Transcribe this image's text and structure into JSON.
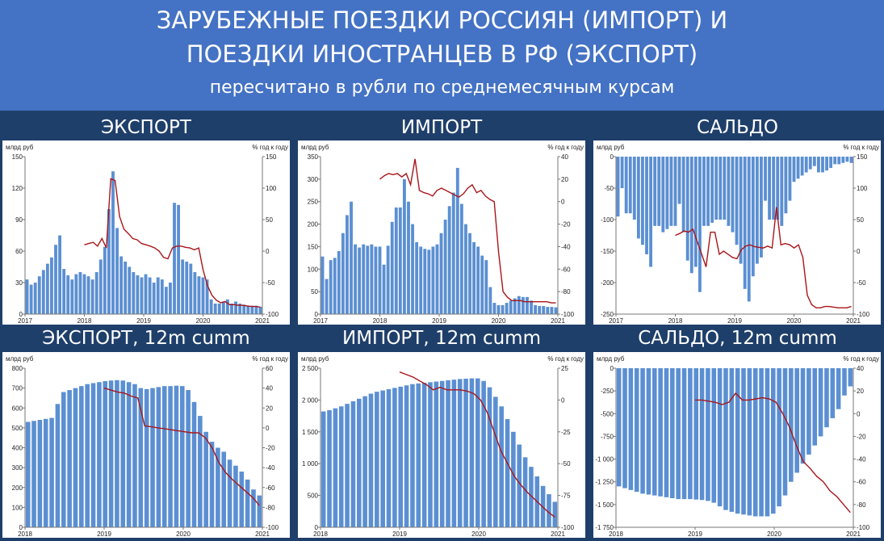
{
  "title": {
    "line1": "ЗАРУБЕЖНЫЕ ПОЕЗДКИ РОССИЯН (ИМПОРТ) И",
    "line2": "ПОЕЗДКИ ИНОСТРАНЦЕВ В РФ (ЭКСПОРТ)",
    "subtitle": "пересчитано в рубли по среднемесячным курсам"
  },
  "colors": {
    "banner": "#4472c4",
    "background": "#1f3f6b",
    "bars": "#5b8fd2",
    "line": "#a8161a"
  },
  "chart_data": [
    {
      "id": "export",
      "type": "bar+line",
      "title": "ЭКСПОРТ",
      "ylabel_left": "млрд руб",
      "ylabel_right": "% год к году",
      "x_start": 2017.0,
      "x_end": 2021.0,
      "bar_start": 2017.0,
      "line_start": 2018.0,
      "ylim_left": [
        0,
        150
      ],
      "ylim_right": [
        -100,
        150
      ],
      "yticks_left": [
        0,
        30,
        60,
        90,
        120,
        150
      ],
      "yticks_right": [
        -100,
        -50,
        0,
        50,
        100,
        150
      ],
      "xticks": [
        "2017",
        "2018",
        "2019",
        "2020",
        "2021"
      ],
      "series": [
        {
          "name": "млрд руб",
          "type": "bar",
          "values": [
            33,
            28,
            30,
            36,
            42,
            48,
            54,
            66,
            75,
            43,
            37,
            33,
            38,
            40,
            38,
            36,
            33,
            40,
            52,
            64,
            100,
            136,
            82,
            55,
            50,
            45,
            40,
            37,
            35,
            38,
            35,
            30,
            35,
            33,
            26,
            30,
            106,
            104,
            52,
            50,
            48,
            40,
            36,
            35,
            33,
            14,
            10,
            10,
            12,
            14,
            10,
            12,
            10,
            9,
            8,
            8,
            8,
            7
          ]
        },
        {
          "name": "% год к году",
          "type": "line",
          "values": [
            10,
            12,
            14,
            8,
            20,
            5,
            115,
            112,
            55,
            35,
            28,
            20,
            18,
            12,
            10,
            8,
            5,
            0,
            -10,
            -12,
            5,
            8,
            8,
            6,
            5,
            2,
            5,
            -30,
            -55,
            -70,
            -78,
            -82,
            -80,
            -85,
            -85,
            -86,
            -86,
            -87,
            -88,
            -88,
            -89
          ]
        }
      ]
    },
    {
      "id": "import",
      "type": "bar+line",
      "title": "ИМПОРТ",
      "ylabel_left": "млрд руб",
      "ylabel_right": "% год к году",
      "x_start": 2017.0,
      "x_end": 2021.0,
      "bar_start": 2017.0,
      "line_start": 2018.0,
      "ylim_left": [
        0,
        350
      ],
      "ylim_right": [
        -100,
        40
      ],
      "yticks_left": [
        0,
        50,
        100,
        150,
        200,
        250,
        300,
        350
      ],
      "yticks_right": [
        -100,
        -80,
        -60,
        -40,
        -20,
        0,
        20,
        40
      ],
      "xticks": [
        "2017",
        "2018",
        "2019",
        "2020",
        "2021"
      ],
      "series": [
        {
          "name": "млрд руб",
          "type": "bar",
          "values": [
            128,
            78,
            120,
            125,
            140,
            180,
            220,
            250,
            155,
            148,
            155,
            152,
            155,
            150,
            150,
            110,
            152,
            205,
            237,
            237,
            300,
            250,
            200,
            160,
            150,
            145,
            143,
            150,
            155,
            180,
            210,
            240,
            270,
            325,
            245,
            200,
            180,
            160,
            150,
            130,
            120,
            60,
            25,
            20,
            20,
            25,
            30,
            35,
            40,
            38,
            38,
            30,
            20,
            18,
            18,
            16,
            16,
            15
          ]
        },
        {
          "name": "% год к году",
          "type": "line",
          "values": [
            20,
            23,
            25,
            24,
            25,
            22,
            25,
            15,
            38,
            10,
            8,
            7,
            5,
            10,
            12,
            10,
            8,
            6,
            4,
            7,
            12,
            15,
            8,
            10,
            5,
            2,
            0,
            -45,
            -80,
            -85,
            -88,
            -88,
            -88,
            -89,
            -89,
            -89,
            -89,
            -89,
            -89,
            -90,
            -90
          ]
        }
      ]
    },
    {
      "id": "balance",
      "type": "bar+line",
      "title": "САЛЬДО",
      "ylabel_left": "млрд руб",
      "ylabel_right": "% год к году",
      "x_start": 2017.0,
      "x_end": 2021.0,
      "bar_start": 2017.0,
      "line_start": 2018.0,
      "ylim_left": [
        -250,
        0
      ],
      "ylim_right": [
        -100,
        150
      ],
      "yticks_left": [
        -250,
        -200,
        -150,
        -100,
        -50,
        0
      ],
      "yticks_right": [
        -100,
        -50,
        0,
        50,
        100,
        150
      ],
      "xticks": [
        "2017",
        "2018",
        "2019",
        "2020",
        "2021"
      ],
      "series": [
        {
          "name": "млрд руб",
          "type": "bar",
          "values": [
            -95,
            -50,
            -90,
            -90,
            -100,
            -130,
            -140,
            -155,
            -175,
            -110,
            -110,
            -120,
            -115,
            -110,
            -110,
            -75,
            -120,
            -165,
            -185,
            -175,
            -215,
            -110,
            -110,
            -105,
            -100,
            -100,
            -100,
            -110,
            -120,
            -140,
            -170,
            -210,
            -230,
            -190,
            -170,
            -160,
            -70,
            -100,
            -100,
            -100,
            -110,
            -90,
            -70,
            -40,
            -35,
            -30,
            -25,
            -20,
            -15,
            -25,
            -25,
            -22,
            -18,
            -12,
            -12,
            -10,
            -8,
            -10
          ]
        },
        {
          "name": "% год к году",
          "type": "line",
          "values": [
            25,
            28,
            32,
            30,
            35,
            15,
            -5,
            -25,
            30,
            30,
            -5,
            0,
            -5,
            -10,
            -12,
            2,
            8,
            10,
            7,
            6,
            5,
            8,
            5,
            70,
            10,
            12,
            10,
            5,
            10,
            -10,
            -70,
            -85,
            -90,
            -90,
            -88,
            -88,
            -89,
            -90,
            -90,
            -90,
            -88
          ]
        }
      ]
    },
    {
      "id": "export_12m",
      "type": "bar+line",
      "title": "ЭКСПОРТ, 12m cumm",
      "ylabel_left": "млрд руб",
      "ylabel_right": "% год к году",
      "x_start": 2018.0,
      "x_end": 2021.0,
      "bar_start": 2018.0,
      "line_start": 2019.0,
      "ylim_left": [
        0,
        800
      ],
      "ylim_right": [
        -100,
        60
      ],
      "yticks_left": [
        0,
        100,
        200,
        300,
        400,
        500,
        600,
        700,
        800
      ],
      "yticks_right": [
        -100,
        -80,
        -60,
        -40,
        -20,
        0,
        20,
        40,
        60
      ],
      "xticks": [
        "2018",
        "2019",
        "2020",
        "2021"
      ],
      "series": [
        {
          "name": "млрд руб",
          "type": "bar",
          "values": [
            530,
            535,
            540,
            545,
            550,
            620,
            680,
            690,
            700,
            710,
            720,
            725,
            730,
            735,
            738,
            740,
            738,
            730,
            720,
            700,
            695,
            700,
            705,
            710,
            710,
            712,
            710,
            690,
            630,
            560,
            480,
            430,
            400,
            380,
            340,
            310,
            280,
            240,
            190,
            160
          ]
        },
        {
          "name": "% год к году",
          "type": "line",
          "values": [
            40,
            38,
            36,
            35,
            32,
            30,
            2,
            1,
            0,
            -1,
            -2,
            -3,
            -4,
            -5,
            -5,
            -10,
            -20,
            -35,
            -45,
            -52,
            -58,
            -64,
            -70,
            -78
          ]
        }
      ]
    },
    {
      "id": "import_12m",
      "type": "bar+line",
      "title": "ИМПОРТ, 12m cumm",
      "ylabel_left": "млрд руб",
      "ylabel_right": "% год к году",
      "x_start": 2018.0,
      "x_end": 2021.0,
      "bar_start": 2018.0,
      "line_start": 2019.0,
      "ylim_left": [
        0,
        2500
      ],
      "ylim_right": [
        -100,
        25
      ],
      "yticks_left": [
        0,
        500,
        1000,
        1500,
        2000,
        2500
      ],
      "yticks_right": [
        -100,
        -75,
        -50,
        -25,
        0,
        25
      ],
      "xticks": [
        "2018",
        "2019",
        "2020",
        "2021"
      ],
      "ytick_labels_left": [
        "0",
        "500",
        "1 000",
        "1 500",
        "2 000",
        "2 500"
      ],
      "series": [
        {
          "name": "млрд руб",
          "type": "bar",
          "values": [
            1820,
            1840,
            1870,
            1900,
            1940,
            1980,
            2020,
            2060,
            2100,
            2130,
            2150,
            2170,
            2190,
            2210,
            2230,
            2250,
            2260,
            2270,
            2280,
            2290,
            2300,
            2310,
            2320,
            2330,
            2335,
            2340,
            2340,
            2300,
            2200,
            2050,
            1900,
            1700,
            1500,
            1300,
            1100,
            950,
            800,
            650,
            520,
            400
          ]
        },
        {
          "name": "% год к году",
          "type": "line",
          "values": [
            22,
            20,
            18,
            15,
            12,
            8,
            10,
            8,
            8,
            8,
            7,
            5,
            0,
            -10,
            -25,
            -40,
            -50,
            -60,
            -67,
            -73,
            -78,
            -83,
            -88,
            -92
          ]
        }
      ]
    },
    {
      "id": "balance_12m",
      "type": "bar+line",
      "title": "САЛЬДО, 12m cumm",
      "ylabel_left": "млрд руб",
      "ylabel_right": "% год к году",
      "x_start": 2018.0,
      "x_end": 2021.0,
      "bar_start": 2018.0,
      "line_start": 2019.0,
      "ylim_left": [
        -1750,
        0
      ],
      "ylim_right": [
        -100,
        40
      ],
      "yticks_left": [
        -1750,
        -1500,
        -1250,
        -1000,
        -750,
        -500,
        -250,
        0
      ],
      "yticks_right": [
        -100,
        -80,
        -60,
        -40,
        -20,
        0,
        20,
        40
      ],
      "xticks": [
        "2018",
        "2019",
        "2020",
        "2021"
      ],
      "ytick_labels_left": [
        "-1 750",
        "-1 500",
        "-1 250",
        "-1 000",
        "-750",
        "-500",
        "-250",
        "0"
      ],
      "series": [
        {
          "name": "млрд руб",
          "type": "bar",
          "values": [
            -1300,
            -1320,
            -1340,
            -1360,
            -1380,
            -1390,
            -1400,
            -1410,
            -1420,
            -1430,
            -1440,
            -1440,
            -1440,
            -1445,
            -1450,
            -1460,
            -1480,
            -1520,
            -1560,
            -1580,
            -1600,
            -1610,
            -1620,
            -1630,
            -1630,
            -1630,
            -1600,
            -1520,
            -1400,
            -1250,
            -1150,
            -1050,
            -950,
            -850,
            -750,
            -650,
            -550,
            -450,
            -300,
            -200
          ]
        },
        {
          "name": "% год к году",
          "type": "line",
          "values": [
            12,
            12,
            11,
            10,
            8,
            10,
            18,
            12,
            12,
            13,
            14,
            13,
            10,
            0,
            -12,
            -28,
            -42,
            -48,
            -55,
            -60,
            -68,
            -73,
            -80,
            -87
          ]
        }
      ]
    }
  ]
}
